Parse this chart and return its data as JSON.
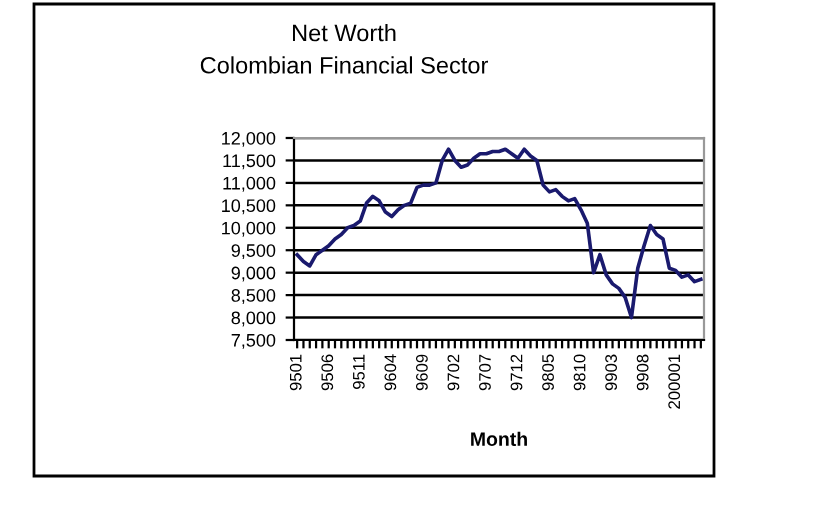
{
  "chart_data": {
    "type": "line",
    "title": "Net Worth\nColombian Financial Sector",
    "xlabel": "Month",
    "categories": [
      "9501",
      null,
      null,
      null,
      null,
      "9506",
      null,
      null,
      null,
      null,
      "9511",
      null,
      null,
      null,
      null,
      "9604",
      null,
      null,
      null,
      null,
      "9609",
      null,
      null,
      null,
      null,
      "9702",
      null,
      null,
      null,
      null,
      "9707",
      null,
      null,
      null,
      null,
      "9712",
      null,
      null,
      null,
      null,
      "9805",
      null,
      null,
      null,
      null,
      "9810",
      null,
      null,
      null,
      null,
      "9903",
      null,
      null,
      null,
      null,
      "9908",
      null,
      null,
      null,
      null,
      "200001",
      null,
      null,
      null,
      null
    ],
    "series": [
      {
        "color": "#1a1a6e",
        "values": [
          9400,
          9250,
          9150,
          9400,
          9500,
          9600,
          9750,
          9850,
          10000,
          10050,
          10150,
          10550,
          10700,
          10600,
          10350,
          10250,
          10400,
          10500,
          10550,
          10900,
          10950,
          10950,
          11000,
          11500,
          11750,
          11500,
          11350,
          11400,
          11550,
          11650,
          11650,
          11700,
          11700,
          11750,
          11650,
          11550,
          11750,
          11600,
          11500,
          10950,
          10800,
          10850,
          10700,
          10600,
          10650,
          10400,
          10100,
          9000,
          9400,
          8950,
          8750,
          8650,
          8450,
          8000,
          9100,
          9600,
          10050,
          9850,
          9750,
          9100,
          9050,
          8900,
          8950,
          8800,
          8850
        ]
      }
    ],
    "ylim": [
      7500,
      12000
    ],
    "yticks": [
      {
        "value": 7500,
        "label": "7,500"
      },
      {
        "value": 8000,
        "label": "8,000"
      },
      {
        "value": 8500,
        "label": "8,500"
      },
      {
        "value": 9000,
        "label": "9,000"
      },
      {
        "value": 9500,
        "label": "9,500"
      },
      {
        "value": 10000,
        "label": "10,000"
      },
      {
        "value": 10500,
        "label": "10,500"
      },
      {
        "value": 11000,
        "label": "11,000"
      },
      {
        "value": 11500,
        "label": "11,500"
      },
      {
        "value": 12000,
        "label": "12,000"
      }
    ],
    "grid": "y",
    "marker": "none",
    "line_style": "solid"
  }
}
